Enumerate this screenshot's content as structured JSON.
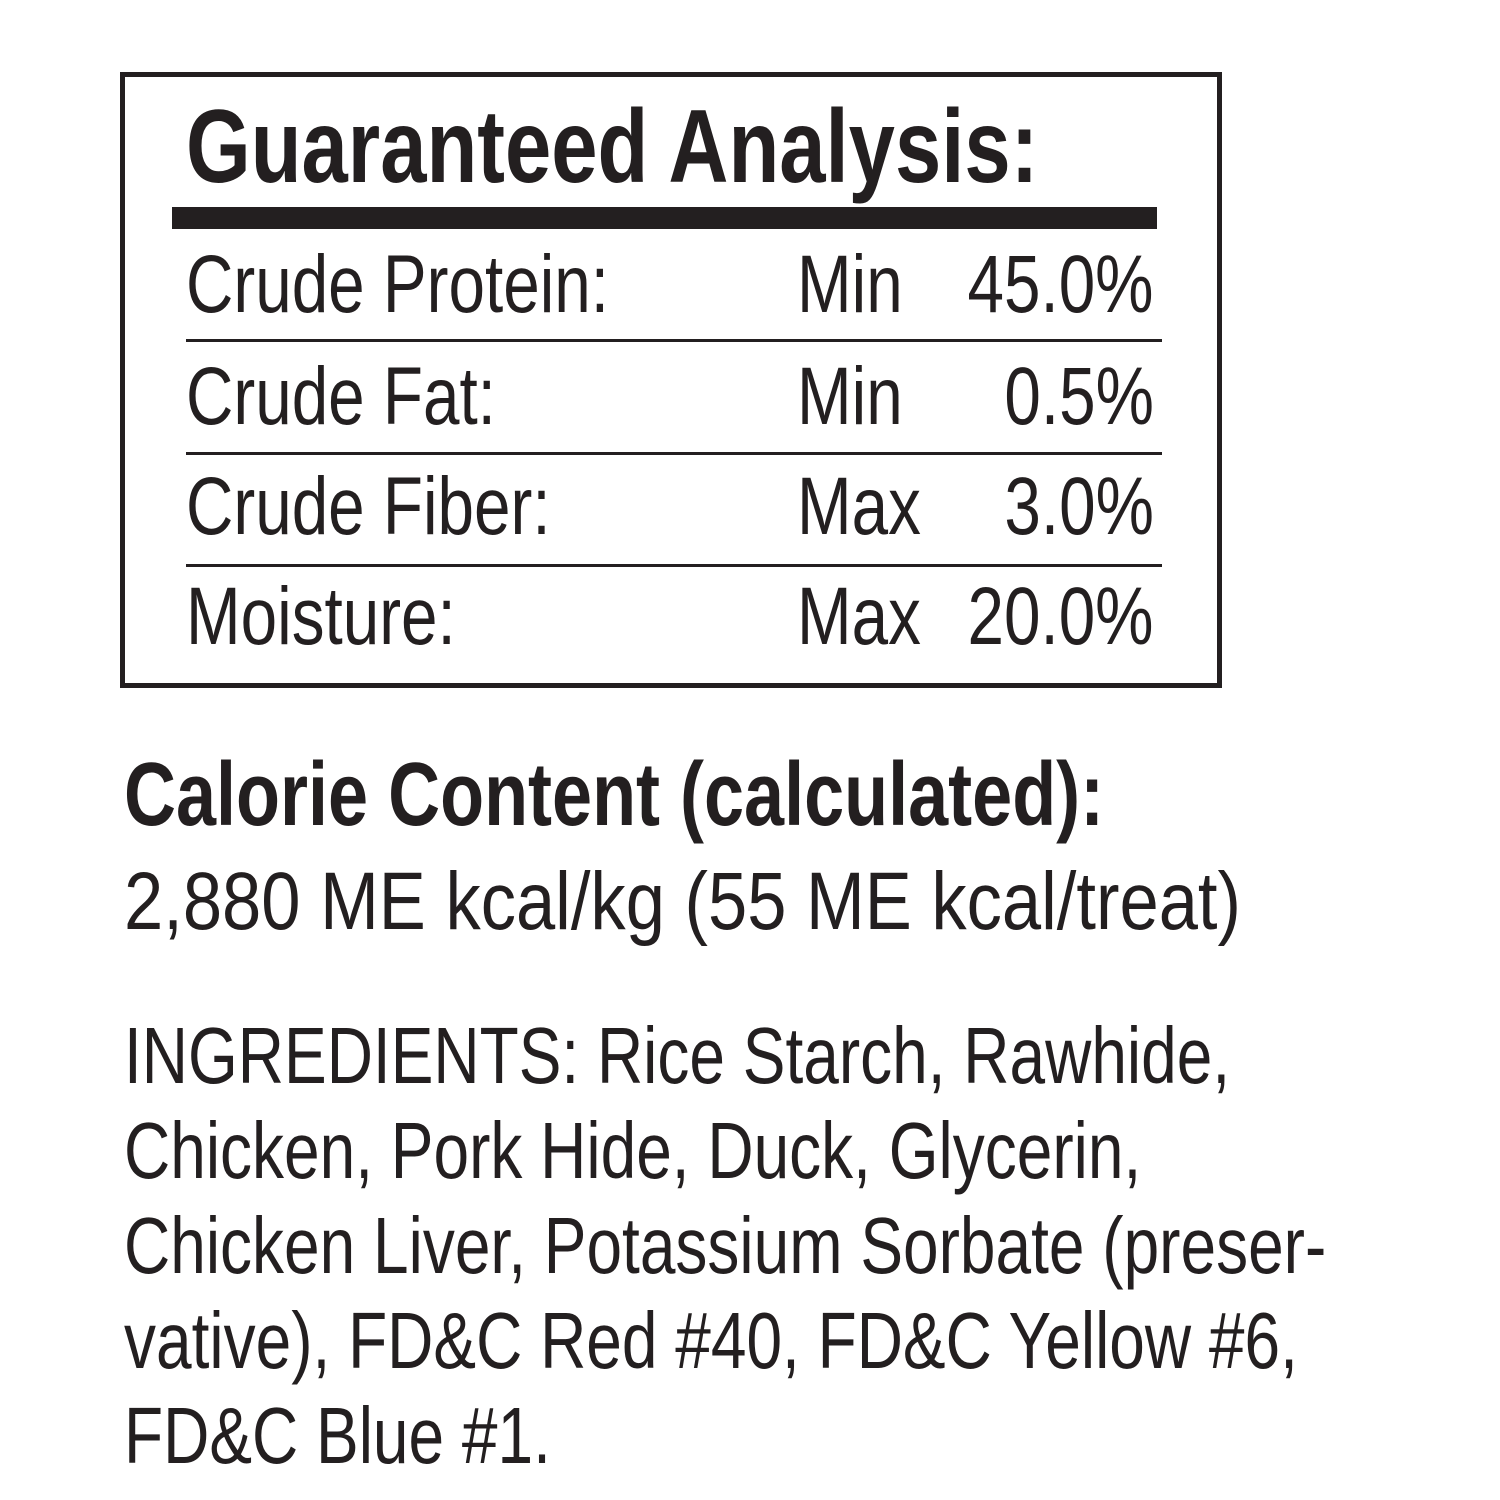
{
  "analysis": {
    "title": "Guaranteed Analysis:",
    "rows": [
      {
        "label": "Crude Protein:",
        "qualifier": "Min",
        "value": "45.0%"
      },
      {
        "label": "Crude Fat:",
        "qualifier": "Min",
        "value": "0.5%"
      },
      {
        "label": "Crude Fiber:",
        "qualifier": "Max",
        "value": "3.0%"
      },
      {
        "label": "Moisture:",
        "qualifier": "Max",
        "value": "20.0%"
      }
    ]
  },
  "calorie": {
    "heading": "Calorie Content (calculated):",
    "value": "2,880 ME kcal/kg (55 ME kcal/treat)"
  },
  "ingredients": {
    "lines": [
      "INGREDIENTS: Rice Starch, Rawhide,",
      "Chicken, Pork Hide, Duck, Glycerin,",
      "Chicken Liver, Potassium Sorbate (preser-",
      "vative), FD&C Red #40, FD&C Yellow #6,",
      "FD&C Blue #1."
    ]
  },
  "colors": {
    "ink": "#231f20",
    "background": "#ffffff"
  }
}
